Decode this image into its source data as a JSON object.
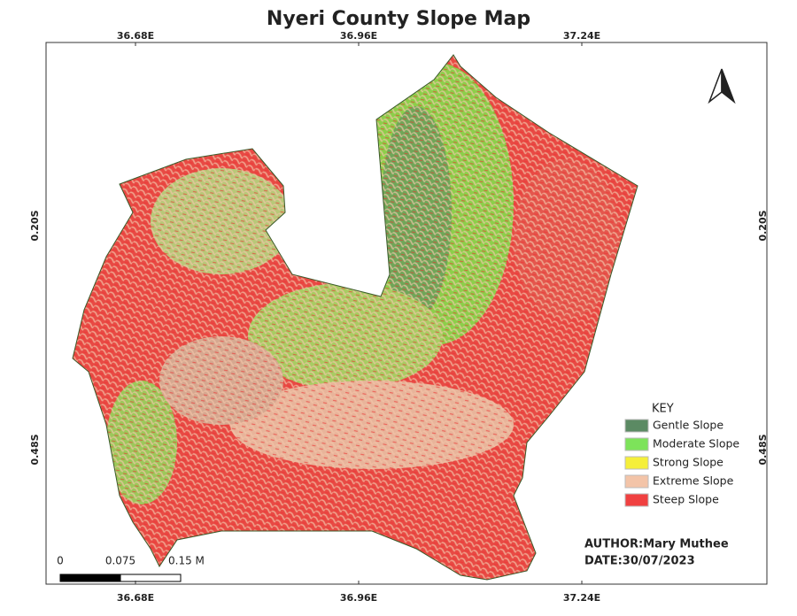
{
  "title": "Nyeri County Slope Map",
  "grid": {
    "longitudes": [
      "36.68E",
      "36.96E",
      "37.24E"
    ],
    "latitudes": [
      "0.20S",
      "0.48S"
    ]
  },
  "legend": {
    "title": "KEY",
    "items": [
      {
        "label": "Gentle Slope",
        "color": "#5b8a63"
      },
      {
        "label": "Moderate Slope",
        "color": "#7de35a"
      },
      {
        "label": "Strong Slope",
        "color": "#f5ef3a"
      },
      {
        "label": "Extreme Slope",
        "color": "#f3c4a8"
      },
      {
        "label": "Steep Slope",
        "color": "#f04040"
      }
    ]
  },
  "scale_bar": {
    "labels": [
      "0",
      "0.075",
      "0.15 M"
    ]
  },
  "author": "AUTHOR:Mary Muthee",
  "date": "DATE:30/07/2023"
}
